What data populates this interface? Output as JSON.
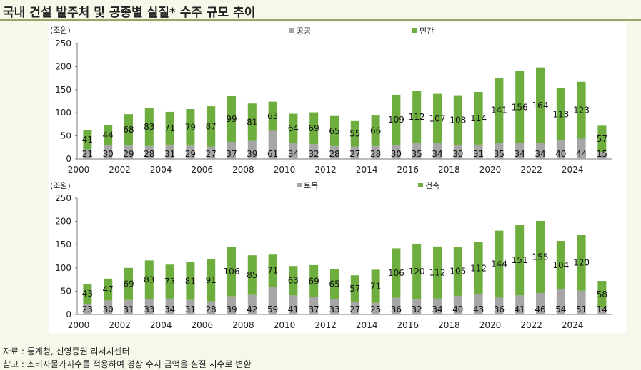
{
  "title": "국내 건설 발주처 및 공종별 실질* 수주 규모 추이",
  "colors": {
    "gray": "#a6a6a6",
    "green": "#6eae3e",
    "background": "#f6f8ea"
  },
  "notes": {
    "source": "자료 : 통계청, 신영증권 리서치센터",
    "reference": "참고 : 소비자물가지수를 적용하여 경상 수지 금액을 실질 지수로 변환"
  },
  "chart_data": [
    {
      "type": "bar",
      "stacked": true,
      "unit": "(조원)",
      "categories": [
        "2000",
        "2001",
        "2002",
        "2003",
        "2004",
        "2005",
        "2006",
        "2007",
        "2008",
        "2009",
        "2010",
        "2011",
        "2012",
        "2013",
        "2014",
        "2015",
        "2016",
        "2017",
        "2018",
        "2019",
        "2020",
        "2021",
        "2022",
        "2023",
        "2024",
        "2025"
      ],
      "xtick_labels": [
        "2000",
        "2002",
        "2004",
        "2006",
        "2008",
        "2010",
        "2012",
        "2014",
        "2016",
        "2018",
        "2020",
        "2022",
        "2024"
      ],
      "ylim": [
        0,
        250
      ],
      "yticks": [
        0,
        50,
        100,
        150,
        200,
        250
      ],
      "legend_position": "top-center",
      "series": [
        {
          "name": "공공",
          "color": "#a6a6a6",
          "values": [
            21,
            30,
            29,
            28,
            31,
            29,
            27,
            37,
            39,
            61,
            34,
            32,
            28,
            27,
            28,
            30,
            35,
            34,
            30,
            31,
            35,
            34,
            34,
            40,
            44,
            15
          ]
        },
        {
          "name": "민간",
          "color": "#6eae3e",
          "values": [
            41,
            44,
            68,
            83,
            71,
            79,
            87,
            99,
            81,
            63,
            64,
            69,
            65,
            55,
            66,
            109,
            112,
            107,
            108,
            114,
            141,
            156,
            164,
            113,
            123,
            57
          ]
        }
      ]
    },
    {
      "type": "bar",
      "stacked": true,
      "unit": "(조원)",
      "categories": [
        "2000",
        "2001",
        "2002",
        "2003",
        "2004",
        "2005",
        "2006",
        "2007",
        "2008",
        "2009",
        "2010",
        "2011",
        "2012",
        "2013",
        "2014",
        "2015",
        "2016",
        "2017",
        "2018",
        "2019",
        "2020",
        "2021",
        "2022",
        "2023",
        "2024",
        "2025"
      ],
      "xtick_labels": [
        "2000",
        "2002",
        "2004",
        "2006",
        "2008",
        "2010",
        "2012",
        "2014",
        "2016",
        "2018",
        "2020",
        "2022",
        "2024"
      ],
      "ylim": [
        0,
        250
      ],
      "yticks": [
        0,
        50,
        100,
        150,
        200,
        250
      ],
      "legend_position": "top-center",
      "series": [
        {
          "name": "토목",
          "color": "#a6a6a6",
          "values": [
            23,
            30,
            31,
            33,
            34,
            31,
            28,
            39,
            42,
            59,
            41,
            37,
            33,
            27,
            25,
            36,
            32,
            34,
            40,
            43,
            36,
            41,
            46,
            54,
            51,
            14
          ]
        },
        {
          "name": "건축",
          "color": "#6eae3e",
          "values": [
            43,
            47,
            69,
            83,
            73,
            81,
            91,
            106,
            85,
            71,
            63,
            69,
            65,
            57,
            71,
            106,
            120,
            112,
            105,
            112,
            144,
            151,
            155,
            104,
            120,
            58
          ]
        }
      ]
    }
  ]
}
